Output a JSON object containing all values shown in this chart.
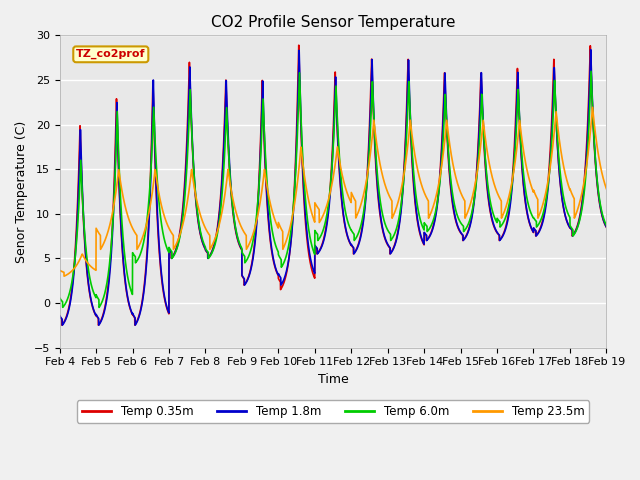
{
  "title": "CO2 Profile Sensor Temperature",
  "ylabel": "Senor Temperature (C)",
  "xlabel": "Time",
  "annotation_text": "TZ_co2prof",
  "annotation_bg": "#ffffcc",
  "annotation_border": "#cc9900",
  "ylim": [
    -5,
    30
  ],
  "yticks": [
    -5,
    0,
    5,
    10,
    15,
    20,
    25,
    30
  ],
  "plot_bg": "#e8e8e8",
  "grid_color": "#ffffff",
  "fig_bg": "#f0f0f0",
  "series": [
    {
      "label": "Temp 0.35m",
      "color": "#dd0000",
      "lw": 1.2
    },
    {
      "label": "Temp 1.8m",
      "color": "#0000cc",
      "lw": 1.2
    },
    {
      "label": "Temp 6.0m",
      "color": "#00cc00",
      "lw": 1.2
    },
    {
      "label": "Temp 23.5m",
      "color": "#ff9900",
      "lw": 1.2
    }
  ],
  "xtick_labels": [
    "Feb 4",
    "Feb 5",
    "Feb 6",
    "Feb 7",
    "Feb 8",
    "Feb 9",
    "Feb 10",
    "Feb 11",
    "Feb 12",
    "Feb 13",
    "Feb 14",
    "Feb 15",
    "Feb 16",
    "Feb 17",
    "Feb 18",
    "Feb 19"
  ],
  "num_days": 15,
  "samples_per_day": 288,
  "peak_maxs_035": [
    20.0,
    23.0,
    25.0,
    27.0,
    25.0,
    25.0,
    29.0,
    26.0,
    27.5,
    27.5,
    26.0,
    26.0,
    26.5,
    27.5,
    29.0
  ],
  "peak_maxs_18": [
    19.5,
    22.5,
    25.0,
    26.5,
    25.0,
    25.0,
    28.5,
    25.5,
    27.5,
    27.5,
    26.0,
    26.0,
    26.0,
    26.5,
    28.5
  ],
  "peak_maxs_60": [
    16.0,
    21.5,
    22.0,
    24.0,
    22.0,
    23.0,
    26.0,
    24.5,
    25.0,
    25.0,
    23.5,
    23.5,
    24.0,
    25.0,
    26.0
  ],
  "peak_maxs_235": [
    5.5,
    15.0,
    15.0,
    15.0,
    15.0,
    15.0,
    17.5,
    17.5,
    20.5,
    20.5,
    20.5,
    20.5,
    20.5,
    21.5,
    22.0
  ],
  "trough_mins_035": [
    -2.5,
    -2.5,
    -2.5,
    5.0,
    5.0,
    2.0,
    1.5,
    5.5,
    5.5,
    5.5,
    7.0,
    7.0,
    7.0,
    7.5,
    7.5
  ],
  "trough_mins_18": [
    -2.5,
    -2.5,
    -2.5,
    5.0,
    5.0,
    2.0,
    2.0,
    5.5,
    5.5,
    5.5,
    7.0,
    7.0,
    7.0,
    7.5,
    7.5
  ],
  "trough_mins_60": [
    -0.5,
    -0.5,
    4.5,
    5.0,
    5.0,
    4.5,
    4.0,
    7.0,
    7.0,
    7.0,
    8.0,
    8.0,
    8.5,
    8.5,
    7.5
  ],
  "trough_mins_235": [
    3.0,
    6.0,
    6.0,
    6.0,
    6.0,
    6.0,
    6.0,
    9.0,
    9.5,
    9.5,
    9.5,
    9.5,
    9.5,
    9.5,
    9.5
  ],
  "peak_phase": 0.55,
  "sharpness": 5.0,
  "title_fontsize": 11,
  "label_fontsize": 9,
  "tick_fontsize": 8
}
